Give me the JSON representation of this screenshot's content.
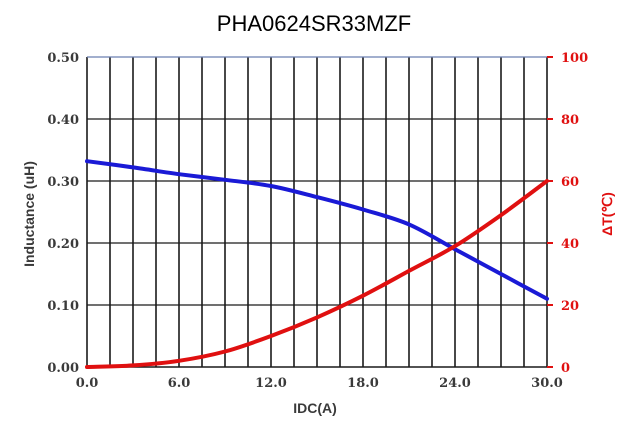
{
  "chart_data": {
    "type": "line",
    "title": "PHA0624SR33MZF",
    "xlabel": "IDC(A)",
    "ylabel": "Inductance (uH)",
    "y2label": "ΔT(℃)",
    "xlim": [
      0,
      30
    ],
    "ylim": [
      0,
      0.5
    ],
    "y2lim": [
      0,
      100
    ],
    "x_ticks": [
      "0.0",
      "6.0",
      "12.0",
      "18.0",
      "24.0",
      "30.0"
    ],
    "y_ticks": [
      "0.00",
      "0.10",
      "0.20",
      "0.30",
      "0.40",
      "0.50"
    ],
    "y2_ticks": [
      "0",
      "20",
      "40",
      "60",
      "80",
      "100"
    ],
    "grid": true,
    "series": [
      {
        "axis": "left",
        "color": "#1a1ad6",
        "x": [
          0,
          3,
          6,
          9,
          12,
          15,
          18,
          21,
          24,
          27,
          30
        ],
        "values": [
          0.332,
          0.322,
          0.311,
          0.302,
          0.292,
          0.274,
          0.254,
          0.23,
          0.19,
          0.15,
          0.11
        ]
      },
      {
        "axis": "right",
        "color": "#e01010",
        "x": [
          0,
          3,
          6,
          9,
          12,
          15,
          18,
          21,
          24,
          27,
          30
        ],
        "values": [
          0,
          0.5,
          2,
          5,
          10,
          16,
          23,
          31,
          39,
          49,
          60
        ]
      }
    ]
  }
}
